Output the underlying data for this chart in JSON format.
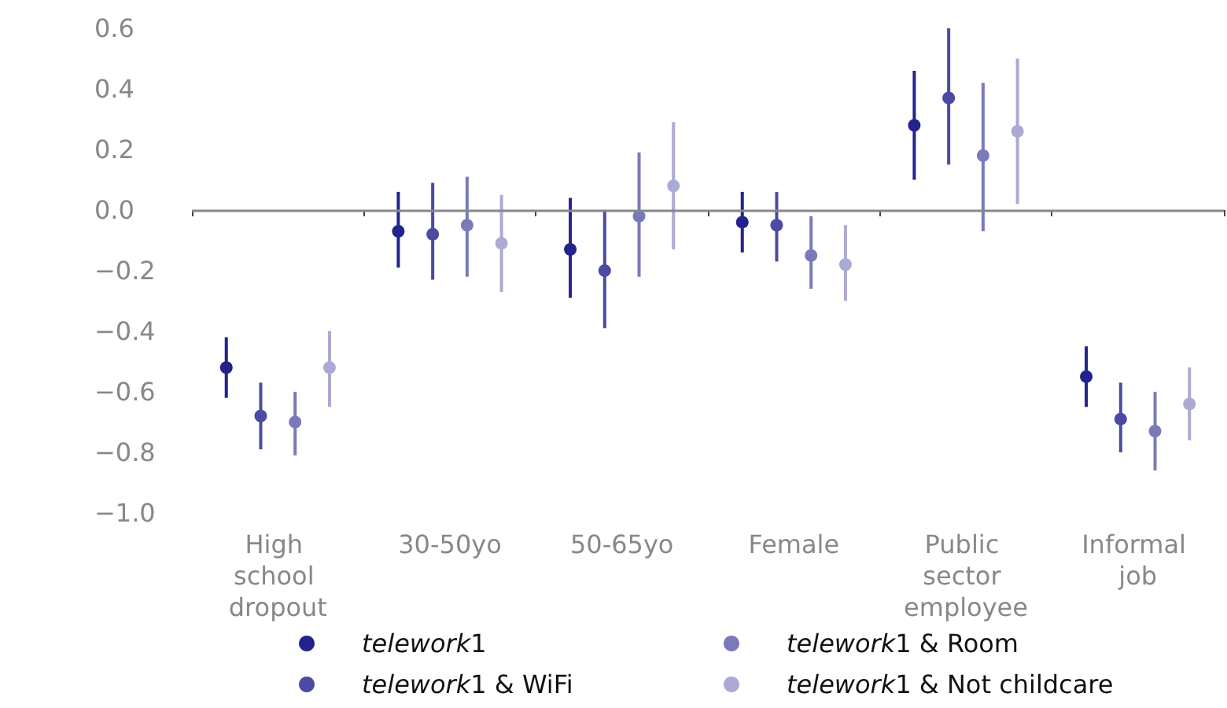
{
  "chart_data": {
    "type": "scatter",
    "categories": [
      "High school dropout",
      "30-50yo",
      "50-65yo",
      "Female",
      "Public sector employee",
      "Informal job"
    ],
    "series": [
      {
        "name": "telework1",
        "color": "#23238e",
        "values": [
          -0.52,
          -0.07,
          -0.13,
          -0.04,
          0.28,
          -0.55
        ],
        "errors": [
          [
            -0.62,
            -0.42
          ],
          [
            -0.19,
            0.06
          ],
          [
            -0.29,
            0.04
          ],
          [
            -0.14,
            0.06
          ],
          [
            0.1,
            0.46
          ],
          [
            -0.65,
            -0.45
          ]
        ]
      },
      {
        "name": "telework1 & WiFi",
        "color": "#4b4ba3",
        "values": [
          -0.68,
          -0.08,
          -0.2,
          -0.05,
          0.37,
          -0.69
        ],
        "errors": [
          [
            -0.79,
            -0.57
          ],
          [
            -0.23,
            0.09
          ],
          [
            -0.39,
            0.0
          ],
          [
            -0.17,
            0.06
          ],
          [
            0.15,
            0.6
          ],
          [
            -0.8,
            -0.57
          ]
        ]
      },
      {
        "name": "telework1 & Room",
        "color": "#7a7abb",
        "values": [
          -0.7,
          -0.05,
          -0.02,
          -0.15,
          0.18,
          -0.73
        ],
        "errors": [
          [
            -0.81,
            -0.6
          ],
          [
            -0.22,
            0.11
          ],
          [
            -0.22,
            0.19
          ],
          [
            -0.26,
            -0.02
          ],
          [
            -0.07,
            0.42
          ],
          [
            -0.86,
            -0.6
          ]
        ]
      },
      {
        "name": "telework1 & Not childcare",
        "color": "#aaaad4",
        "values": [
          -0.52,
          -0.11,
          0.08,
          -0.18,
          0.26,
          -0.64
        ],
        "errors": [
          [
            -0.65,
            -0.4
          ],
          [
            -0.27,
            0.05
          ],
          [
            -0.13,
            0.29
          ],
          [
            -0.3,
            -0.05
          ],
          [
            0.02,
            0.5
          ],
          [
            -0.76,
            -0.52
          ]
        ]
      }
    ],
    "ylim": [
      -1.0,
      0.6
    ],
    "yticks": [
      {
        "value": -1.0,
        "label": "−1.0"
      },
      {
        "value": -0.8,
        "label": "−0.8"
      },
      {
        "value": -0.6,
        "label": "−0.6"
      },
      {
        "value": -0.4,
        "label": "−0.4"
      },
      {
        "value": -0.2,
        "label": "−0.2"
      },
      {
        "value": 0,
        "label": "0.0"
      },
      {
        "value": 0.2,
        "label": "0.2"
      },
      {
        "value": 0.4,
        "label": "0.4"
      },
      {
        "value": 0.6,
        "label": "0.6"
      }
    ],
    "ref_lines": [
      {
        "axis": "y",
        "value": 0,
        "color": "#888888"
      }
    ],
    "grid": false,
    "legend": "bottom",
    "marker": "circle"
  }
}
